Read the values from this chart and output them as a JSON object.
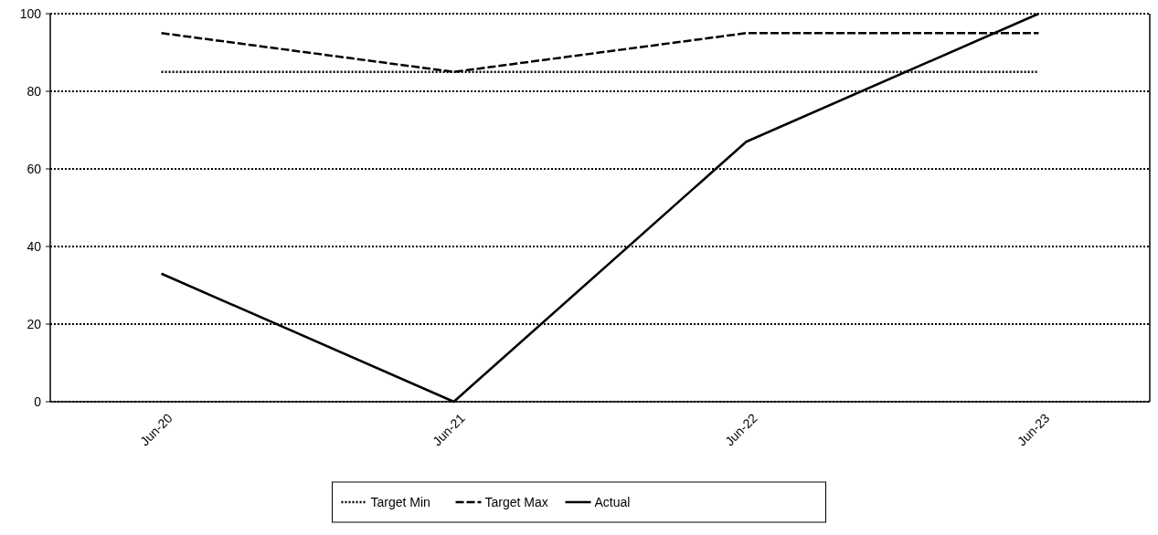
{
  "chart_data": {
    "type": "line",
    "categories": [
      "Jun-20",
      "Jun-21",
      "Jun-22",
      "Jun-23"
    ],
    "series": [
      {
        "name": "Target Min",
        "color": "#000000",
        "line_style": "dotted",
        "values": [
          85,
          85,
          85,
          85
        ]
      },
      {
        "name": "Target Max",
        "color": "#000000",
        "line_style": "dashed",
        "values": [
          95,
          85,
          95,
          95
        ]
      },
      {
        "name": "Actual",
        "color": "#000000",
        "line_style": "solid",
        "values": [
          33,
          0,
          67,
          100
        ]
      }
    ],
    "ylim": [
      0,
      100
    ],
    "yticks": [
      0,
      20,
      40,
      60,
      80,
      100
    ],
    "grid": "y",
    "legend": "bottom",
    "marker": "none"
  }
}
